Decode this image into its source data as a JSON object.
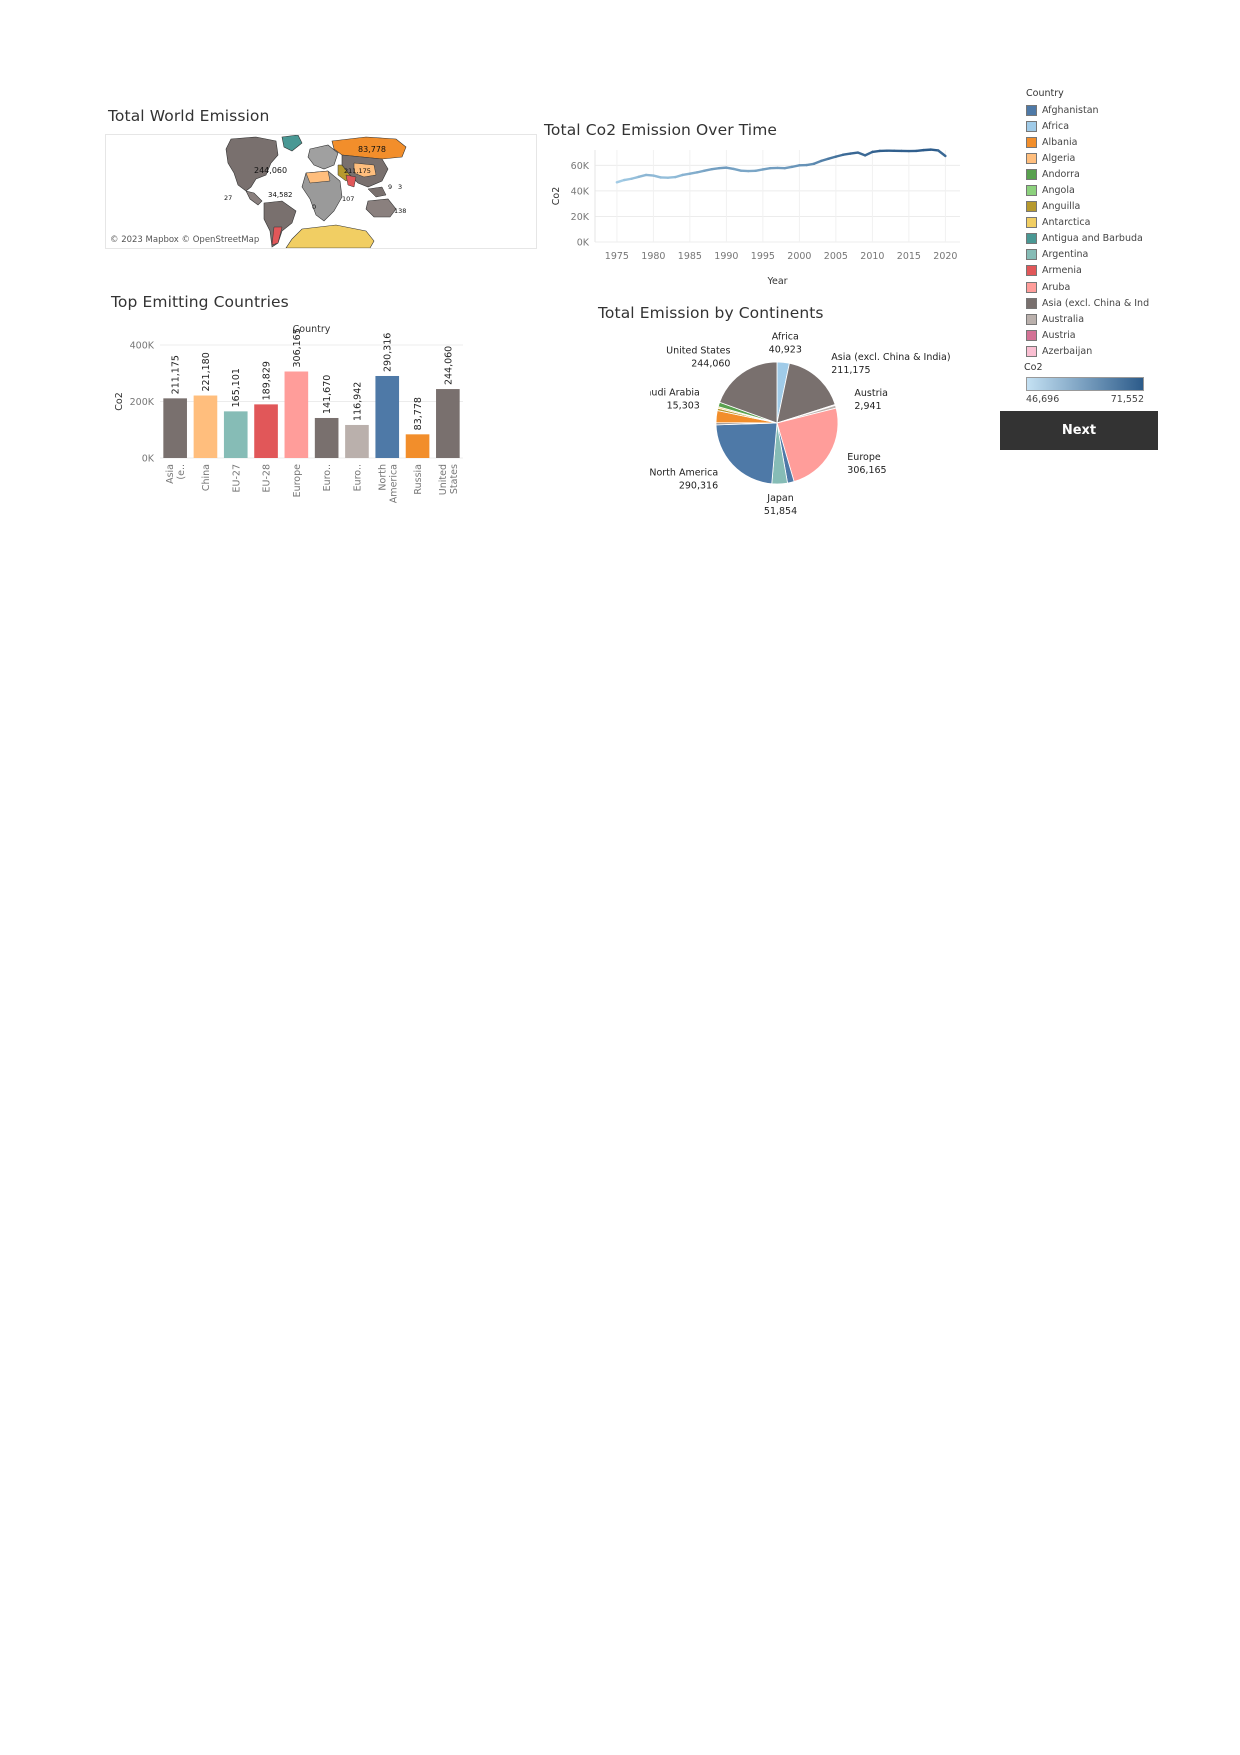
{
  "sheets": {
    "map_title": "Total World Emission",
    "line_title": "Total Co2 Emission Over Time",
    "bar_title": "Top Emitting Countries",
    "pie_title": "Total Emission by Continents"
  },
  "map": {
    "credit": "© 2023 Mapbox © OpenStreetMap",
    "labels": [
      "83,778",
      "244,060",
      "34,582",
      "211,175",
      "9",
      "3",
      "27",
      "0",
      "107",
      "138"
    ]
  },
  "legend": {
    "title": "Country",
    "items": [
      {
        "label": "Afghanistan",
        "color": "#4e79a7"
      },
      {
        "label": "Africa",
        "color": "#a0cbe8"
      },
      {
        "label": "Albania",
        "color": "#f28e2b"
      },
      {
        "label": "Algeria",
        "color": "#ffbe7d"
      },
      {
        "label": "Andorra",
        "color": "#59a14f"
      },
      {
        "label": "Angola",
        "color": "#8cd17d"
      },
      {
        "label": "Anguilla",
        "color": "#b6992d"
      },
      {
        "label": "Antarctica",
        "color": "#f1ce63"
      },
      {
        "label": "Antigua and Barbuda",
        "color": "#499894"
      },
      {
        "label": "Argentina",
        "color": "#86bcb6"
      },
      {
        "label": "Armenia",
        "color": "#e15759"
      },
      {
        "label": "Aruba",
        "color": "#ff9d9a"
      },
      {
        "label": "Asia (excl. China & Ind..",
        "color": "#79706e"
      },
      {
        "label": "Australia",
        "color": "#bab0ac"
      },
      {
        "label": "Austria",
        "color": "#d37295"
      },
      {
        "label": "Azerbaijan",
        "color": "#fabfd2"
      }
    ]
  },
  "co2_legend": {
    "title": "Co2",
    "min": "46,696",
    "max": "71,552",
    "color_low": "#c4e1f3",
    "color_high": "#2c5b8a"
  },
  "next_button": {
    "label": "Next"
  },
  "chart_data": [
    {
      "id": "line",
      "type": "line",
      "title": "Total Co2 Emission Over Time",
      "xlabel": "Year",
      "ylabel": "Co2",
      "xticks": [
        "1975",
        "1980",
        "1985",
        "1990",
        "1995",
        "2000",
        "2005",
        "2010",
        "2015",
        "2020"
      ],
      "yticks": [
        "0K",
        "20K",
        "40K",
        "60K"
      ],
      "xlim": [
        1972,
        2022
      ],
      "ylim": [
        0,
        72000
      ],
      "grid": true,
      "color_low": "#a6cfe8",
      "color_high": "#2c5b8a",
      "x": [
        1975,
        1976,
        1977,
        1978,
        1979,
        1980,
        1981,
        1982,
        1983,
        1984,
        1985,
        1986,
        1987,
        1988,
        1989,
        1990,
        1991,
        1992,
        1993,
        1994,
        1995,
        1996,
        1997,
        1998,
        1999,
        2000,
        2001,
        2002,
        2003,
        2004,
        2005,
        2006,
        2007,
        2008,
        2009,
        2010,
        2011,
        2012,
        2013,
        2014,
        2015,
        2016,
        2017,
        2018,
        2019,
        2020
      ],
      "y": [
        46700,
        48500,
        49500,
        51000,
        52500,
        52000,
        50500,
        50300,
        50800,
        52500,
        53500,
        54500,
        55800,
        57000,
        57800,
        58200,
        57200,
        55800,
        55500,
        55700,
        56800,
        57800,
        58000,
        57800,
        58800,
        60000,
        60200,
        61200,
        63500,
        65200,
        66800,
        68300,
        69200,
        70000,
        67800,
        70500,
        71300,
        71500,
        71400,
        71300,
        71200,
        71300,
        71900,
        72300,
        71700,
        67300
      ]
    },
    {
      "id": "bar",
      "type": "bar",
      "title": "Top Emitting Countries",
      "xlabel": "Country",
      "ylabel": "Co2",
      "yticks": [
        "0K",
        "200K",
        "400K"
      ],
      "ylim": [
        0,
        400000
      ],
      "grid": true,
      "categories": [
        "Asia (e..",
        "China",
        "EU-27",
        "EU-28",
        "Europe",
        "Euro..",
        "Euro..",
        "North America",
        "Russia",
        "United States"
      ],
      "values": [
        211175,
        221180,
        165101,
        189829,
        306165,
        141670,
        116942,
        290316,
        83778,
        244060
      ],
      "value_labels": [
        "211,175",
        "221,180",
        "165,101",
        "189,829",
        "306,165",
        "141,670",
        "116,942",
        "290,316",
        "83,778",
        "244,060"
      ],
      "colors": [
        "#79706e",
        "#ffbe7d",
        "#86bcb6",
        "#e15759",
        "#ff9d9a",
        "#79706e",
        "#bab0ac",
        "#4e79a7",
        "#f28e2b",
        "#79706e"
      ]
    },
    {
      "id": "pie",
      "type": "pie",
      "title": "Total Emission by Continents",
      "slices": [
        {
          "label": "Africa",
          "value": 40923,
          "value_label": "40,923",
          "color": "#a0cbe8"
        },
        {
          "label": "Asia (excl. China & India)",
          "value": 211175,
          "value_label": "211,175",
          "color": "#79706e"
        },
        {
          "label": "Austria",
          "value": 2941,
          "value_label": "2,941",
          "color": "#d37295"
        },
        {
          "label": "",
          "value": 9000,
          "value_label": "",
          "color": "#bab0ac"
        },
        {
          "label": "Europe",
          "value": 306165,
          "value_label": "306,165",
          "color": "#ff9d9a"
        },
        {
          "label": "",
          "value": 22000,
          "value_label": "",
          "color": "#4e79a7"
        },
        {
          "label": "Japan",
          "value": 51854,
          "value_label": "51,854",
          "color": "#86bcb6"
        },
        {
          "label": "North America",
          "value": 290316,
          "value_label": "290,316",
          "color": "#4e79a7"
        },
        {
          "label": "",
          "value": 7000,
          "value_label": "",
          "color": "#79706e"
        },
        {
          "label": "",
          "value": 40000,
          "value_label": "",
          "color": "#f28e2b"
        },
        {
          "label": "",
          "value": 8000,
          "value_label": "",
          "color": "#b6992d"
        },
        {
          "label": "",
          "value": 5000,
          "value_label": "",
          "color": "#f1ce63"
        },
        {
          "label": "Saudi Arabia",
          "value": 15303,
          "value_label": "15,303",
          "color": "#59a14f"
        },
        {
          "label": "United States",
          "value": 244060,
          "value_label": "244,060",
          "color": "#79706e"
        }
      ]
    }
  ]
}
